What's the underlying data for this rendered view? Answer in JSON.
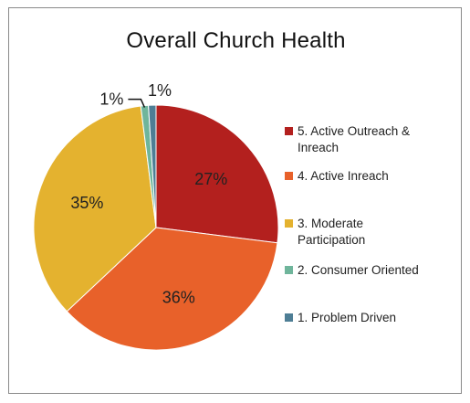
{
  "chart_data": {
    "type": "pie",
    "title": "Overall Church Health",
    "slices": [
      {
        "label": "5. Active Outreach & Inreach",
        "value": 27,
        "display": "27%",
        "color": "#B3201E"
      },
      {
        "label": "4. Active Inreach",
        "value": 36,
        "display": "36%",
        "color": "#E8612A"
      },
      {
        "label": "3. Moderate Participation",
        "value": 35,
        "display": "35%",
        "color": "#E4B22F"
      },
      {
        "label": "2. Consumer Oriented",
        "value": 1,
        "display": "1%",
        "color": "#6FB59B"
      },
      {
        "label": "1. Problem Driven",
        "value": 1,
        "display": "1%",
        "color": "#4E7E95"
      }
    ],
    "legend": {
      "position": "right",
      "entries": [
        {
          "label_lines": [
            "5. Active Outreach &",
            "Inreach"
          ],
          "color": "#B3201E"
        },
        {
          "label_lines": [
            "4. Active Inreach"
          ],
          "color": "#E8612A"
        },
        {
          "label_lines": [
            "3. Moderate",
            "Participation"
          ],
          "color": "#E4B22F"
        },
        {
          "label_lines": [
            "2. Consumer Oriented"
          ],
          "color": "#6FB59B"
        },
        {
          "label_lines": [
            "1. Problem Driven"
          ],
          "color": "#4E7E95"
        }
      ]
    }
  }
}
